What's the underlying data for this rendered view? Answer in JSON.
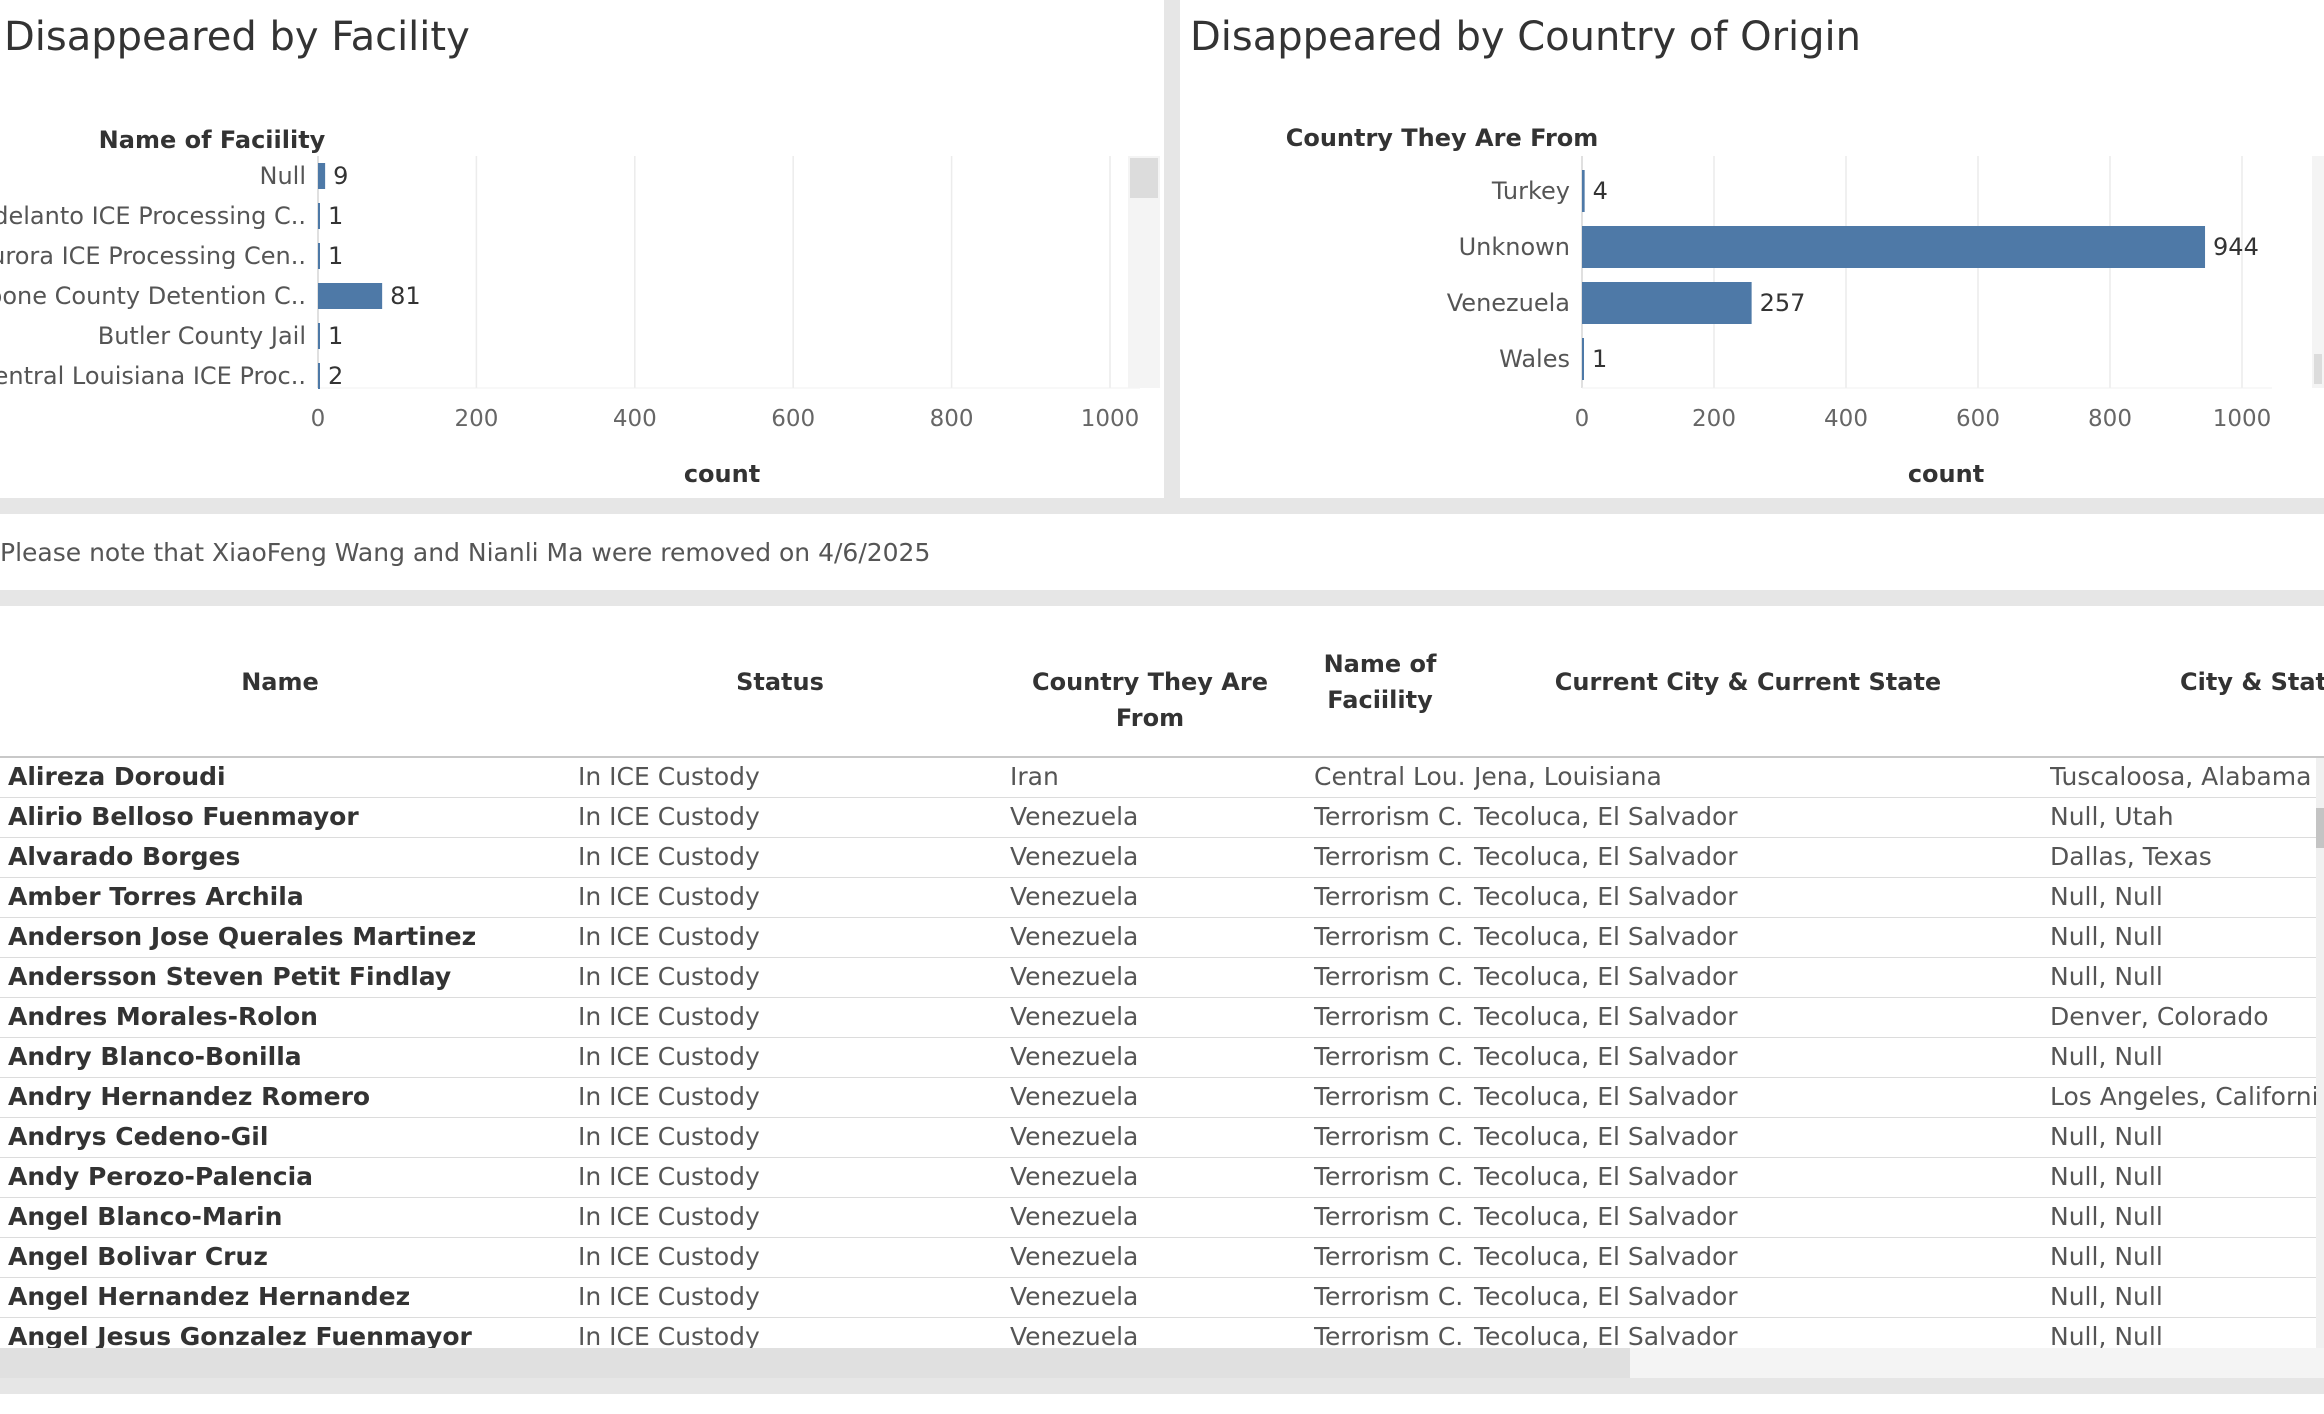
{
  "facility_panel": {
    "title": "Disappeared by  Facility"
  },
  "country_panel": {
    "title": "Disappeared by Country of Origin"
  },
  "chart_data": [
    {
      "type": "bar",
      "orientation": "horizontal",
      "title": "Disappeared by  Facility",
      "ylabel": "Name of Faciility",
      "xlabel": "count",
      "categories": [
        "Null",
        "Adelanto ICE Processing C..",
        "Aurora ICE Processing Cen..",
        "Boone County Detention C..",
        "Butler County Jail",
        "Central Louisiana ICE Proc.."
      ],
      "values": [
        9,
        1,
        1,
        81,
        1,
        2
      ],
      "xticks": [
        "0",
        "200",
        "400",
        "600",
        "800",
        "1000"
      ],
      "xlim": [
        0,
        1000
      ],
      "grid": true,
      "color": "#4e79a7"
    },
    {
      "type": "bar",
      "orientation": "horizontal",
      "title": "Disappeared by Country of Origin",
      "ylabel": "Country They Are From",
      "xlabel": "count",
      "categories": [
        "Turkey",
        "Unknown",
        "Venezuela",
        "Wales"
      ],
      "values": [
        4,
        944,
        257,
        1
      ],
      "xticks": [
        "0",
        "200",
        "400",
        "600",
        "800",
        "1000"
      ],
      "xlim": [
        0,
        1000
      ],
      "grid": true,
      "color": "#4e79a7"
    }
  ],
  "note": "Please note that XiaoFeng Wang and Nianli Ma were removed on 4/6/2025",
  "table": {
    "headers": {
      "name": "Name",
      "status": "Status",
      "country": "Country They Are From",
      "facility_line1": "Name of",
      "facility_line2": "Faciility",
      "current": "Current City & Current State",
      "origin": "City & Stat"
    },
    "rows": [
      [
        "Alireza Doroudi",
        "In ICE Custody",
        "Iran",
        "Central Lou..",
        "Jena, Louisiana",
        "Tuscaloosa, Alabama"
      ],
      [
        "Alirio Belloso Fuenmayor",
        "In ICE Custody",
        "Venezuela",
        "Terrorism C..",
        "Tecoluca, El Salvador",
        "Null, Utah"
      ],
      [
        "Alvarado Borges",
        "In ICE Custody",
        "Venezuela",
        "Terrorism C..",
        "Tecoluca, El Salvador",
        "Dallas, Texas"
      ],
      [
        "Amber Torres Archila",
        "In ICE Custody",
        "Venezuela",
        "Terrorism C..",
        "Tecoluca, El Salvador",
        "Null, Null"
      ],
      [
        "Anderson Jose Querales Martinez",
        "In ICE Custody",
        "Venezuela",
        "Terrorism C..",
        "Tecoluca, El Salvador",
        "Null, Null"
      ],
      [
        "Andersson Steven Petit Findlay",
        "In ICE Custody",
        "Venezuela",
        "Terrorism C..",
        "Tecoluca, El Salvador",
        "Null, Null"
      ],
      [
        "Andres Morales-Rolon",
        "In ICE Custody",
        "Venezuela",
        "Terrorism C..",
        "Tecoluca, El Salvador",
        "Denver, Colorado"
      ],
      [
        "Andry Blanco-Bonilla",
        "In ICE Custody",
        "Venezuela",
        "Terrorism C..",
        "Tecoluca, El Salvador",
        "Null, Null"
      ],
      [
        "Andry Hernandez Romero",
        "In ICE Custody",
        "Venezuela",
        "Terrorism C..",
        "Tecoluca, El Salvador",
        "Los Angeles, California"
      ],
      [
        "Andrys Cedeno-Gil",
        "In ICE Custody",
        "Venezuela",
        "Terrorism C..",
        "Tecoluca, El Salvador",
        "Null, Null"
      ],
      [
        "Andy Perozo-Palencia",
        "In ICE Custody",
        "Venezuela",
        "Terrorism C..",
        "Tecoluca, El Salvador",
        "Null, Null"
      ],
      [
        "Angel Blanco-Marin",
        "In ICE Custody",
        "Venezuela",
        "Terrorism C..",
        "Tecoluca, El Salvador",
        "Null, Null"
      ],
      [
        "Angel Bolivar Cruz",
        "In ICE Custody",
        "Venezuela",
        "Terrorism C..",
        "Tecoluca, El Salvador",
        "Null, Null"
      ],
      [
        "Angel Hernandez Hernandez",
        "In ICE Custody",
        "Venezuela",
        "Terrorism C..",
        "Tecoluca, El Salvador",
        "Null, Null"
      ],
      [
        "Angel Jesus Gonzalez Fuenmayor",
        "In ICE Custody",
        "Venezuela",
        "Terrorism C..",
        "Tecoluca, El Salvador",
        "Null, Null"
      ]
    ]
  }
}
